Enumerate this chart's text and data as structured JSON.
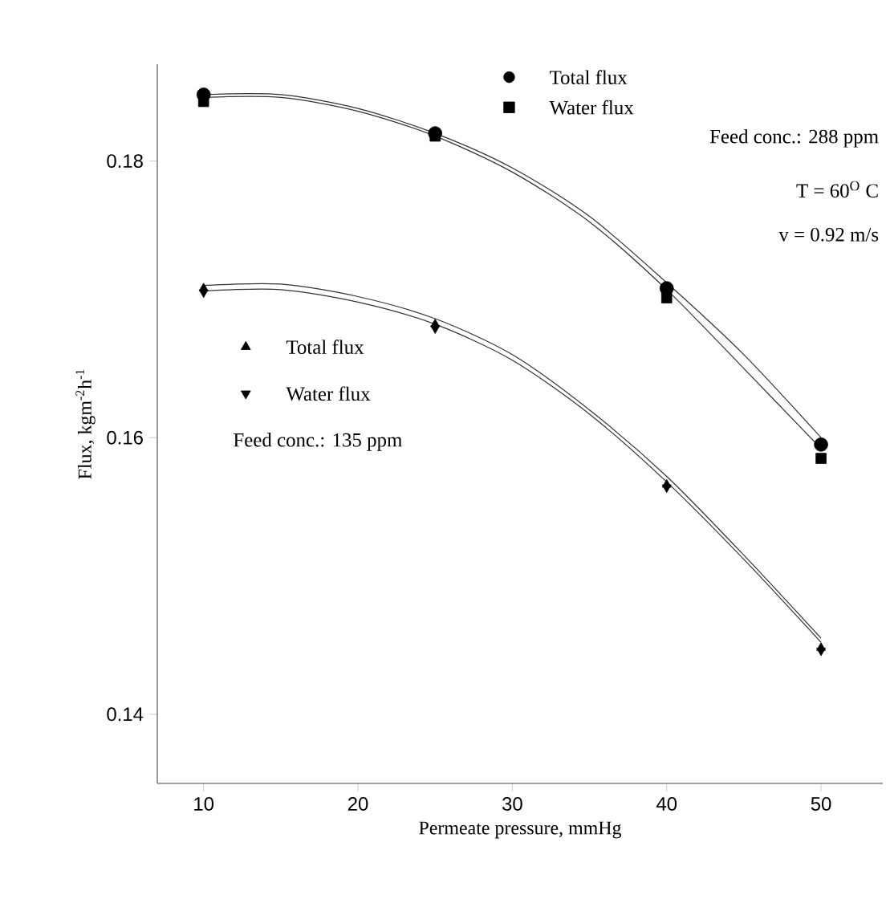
{
  "chart_data": {
    "type": "scatter",
    "xlabel": "Permeate pressure, mmHg",
    "ylabel": "Flux, kgm$^{-2}$h$^{-1}$",
    "x": [
      10,
      25,
      40,
      50
    ],
    "series": [
      {
        "name": "Total flux",
        "color": "#000000",
        "marker": "circle",
        "values": [
          0.1848,
          0.182,
          0.1708,
          0.1595
        ]
      },
      {
        "name": "Water flux",
        "color": "#000000",
        "marker": "square",
        "values": [
          0.1843,
          0.1818,
          0.1701,
          0.1585
        ]
      },
      {
        "name": "Total flux",
        "color": "#000000",
        "marker": "triangle",
        "values": [
          0.1708,
          0.1682,
          0.1566,
          0.1448
        ]
      },
      {
        "name": "Water flux",
        "color": "#000000",
        "marker": "triangle-down",
        "values": [
          0.1705,
          0.1679,
          0.1564,
          0.1446
        ]
      },
      {
        "type": "line",
        "color": "#333333",
        "x": [
          10,
          15,
          20,
          25,
          30,
          35,
          40,
          45,
          50
        ],
        "values": [
          0.1848,
          0.1848,
          0.1838,
          0.182,
          0.1795,
          0.176,
          0.1712,
          0.166,
          0.16
        ]
      },
      {
        "type": "line",
        "color": "#333333",
        "x": [
          10,
          15,
          20,
          25,
          30,
          35,
          40,
          45,
          50
        ],
        "values": [
          0.1846,
          0.1846,
          0.1836,
          0.1818,
          0.1792,
          0.1756,
          0.1707,
          0.165,
          0.1592
        ]
      },
      {
        "type": "line",
        "color": "#333333",
        "x": [
          10,
          15,
          20,
          25,
          30,
          35,
          40,
          45,
          50
        ],
        "values": [
          0.171,
          0.1711,
          0.1702,
          0.1686,
          0.166,
          0.162,
          0.1572,
          0.1515,
          0.1455
        ]
      },
      {
        "type": "line",
        "color": "#333333",
        "x": [
          10,
          15,
          20,
          25,
          30,
          35,
          40,
          45,
          50
        ],
        "values": [
          0.1706,
          0.1707,
          0.1698,
          0.1682,
          0.1656,
          0.1617,
          0.1568,
          0.1512,
          0.1452
        ]
      }
    ],
    "annotations": [
      "Feed conc.: 288 ppm",
      "T = 60$^{O}$ C",
      "v = 0.92 m/s",
      "Feed conc.: 135 ppm"
    ],
    "xlim": [
      7,
      54
    ],
    "ylim": [
      0.135,
      0.187
    ],
    "xticks": [
      10,
      20,
      30,
      40,
      50
    ],
    "yticks": [
      0.14,
      0.16,
      0.18
    ],
    "grid": false,
    "legend": "top"
  }
}
